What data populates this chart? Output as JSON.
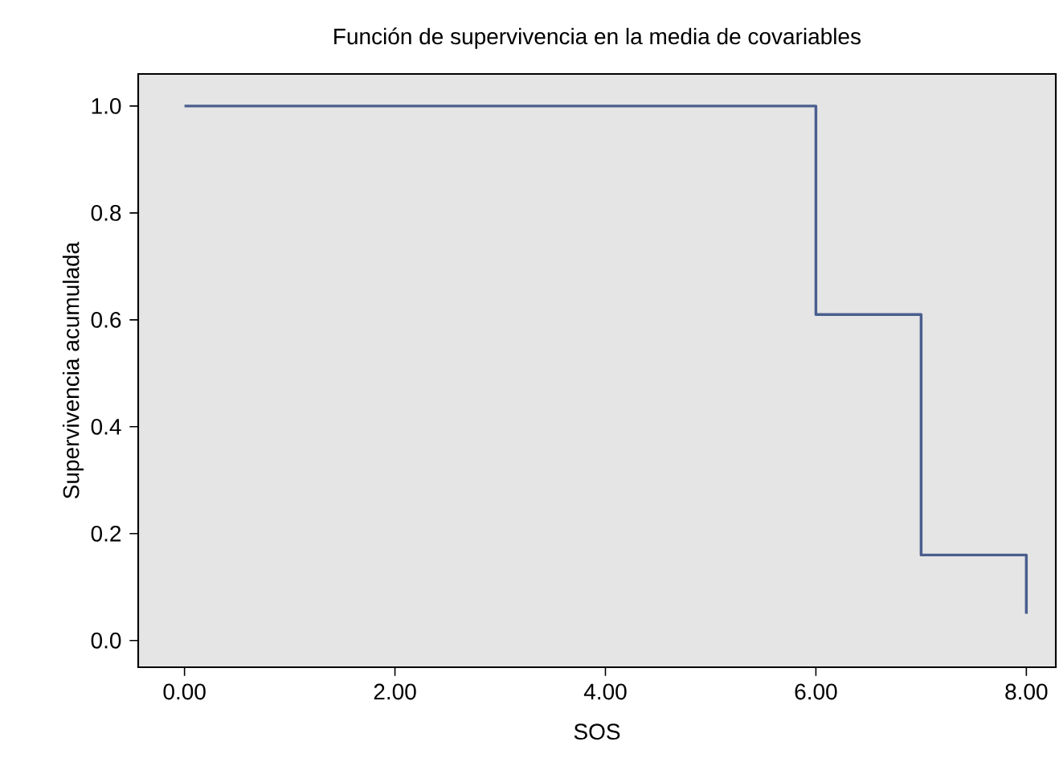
{
  "chart_data": {
    "type": "step",
    "title": "Función de supervivencia en la media de covariables",
    "xlabel": "SOS",
    "ylabel": "Supervivencia acumulada",
    "x": [
      0,
      6,
      7,
      8
    ],
    "series": [
      {
        "color": "#4a5e8e",
        "values": [
          1.0,
          0.61,
          0.16,
          0.05
        ]
      }
    ],
    "xlim": [
      -0.44,
      8.28
    ],
    "ylim": [
      -0.05,
      1.06
    ],
    "xticks": [
      {
        "value": 0,
        "label": "0.00"
      },
      {
        "value": 2,
        "label": "2.00"
      },
      {
        "value": 4,
        "label": "4.00"
      },
      {
        "value": 6,
        "label": "6.00"
      },
      {
        "value": 8,
        "label": "8.00"
      }
    ],
    "yticks": [
      {
        "value": 0,
        "label": "0.0"
      },
      {
        "value": 0.2,
        "label": "0.2"
      },
      {
        "value": 0.4,
        "label": "0.4"
      },
      {
        "value": 0.6,
        "label": "0.6"
      },
      {
        "value": 0.8,
        "label": "0.8"
      },
      {
        "value": 1.0,
        "label": "1.0"
      }
    ],
    "grid": false,
    "marker": "none",
    "line_style": "solid"
  }
}
